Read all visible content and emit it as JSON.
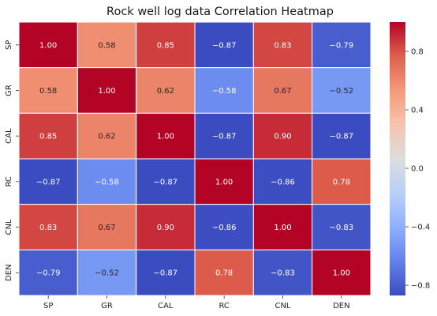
{
  "chart_data": {
    "type": "heatmap",
    "title": "Rock well log data Correlation Heatmap",
    "x_labels": [
      "SP",
      "GR",
      "CAL",
      "RC",
      "CNL",
      "DEN"
    ],
    "y_labels": [
      "SP",
      "GR",
      "CAL",
      "RC",
      "CNL",
      "DEN"
    ],
    "values": [
      [
        1.0,
        0.58,
        0.85,
        -0.87,
        0.83,
        -0.79
      ],
      [
        0.58,
        1.0,
        0.62,
        -0.58,
        0.67,
        -0.52
      ],
      [
        0.85,
        0.62,
        1.0,
        -0.87,
        0.9,
        -0.87
      ],
      [
        -0.87,
        -0.58,
        -0.87,
        1.0,
        -0.86,
        0.78
      ],
      [
        0.83,
        0.67,
        0.9,
        -0.86,
        1.0,
        -0.83
      ],
      [
        -0.79,
        -0.52,
        -0.87,
        0.78,
        -0.83,
        1.0
      ]
    ],
    "value_format": "2 decimals",
    "colormap": "coolwarm",
    "vmin": -0.87,
    "vmax": 1.0,
    "colorbar_ticks": [
      0.8,
      0.4,
      0.0,
      -0.4,
      -0.8
    ],
    "colorbar_tick_labels": [
      "0.8",
      "0.4",
      "0.0",
      "−0.4",
      "−0.8"
    ],
    "cell_border_color": "#ffffff",
    "grid": false,
    "legend": "colorbar-right"
  }
}
